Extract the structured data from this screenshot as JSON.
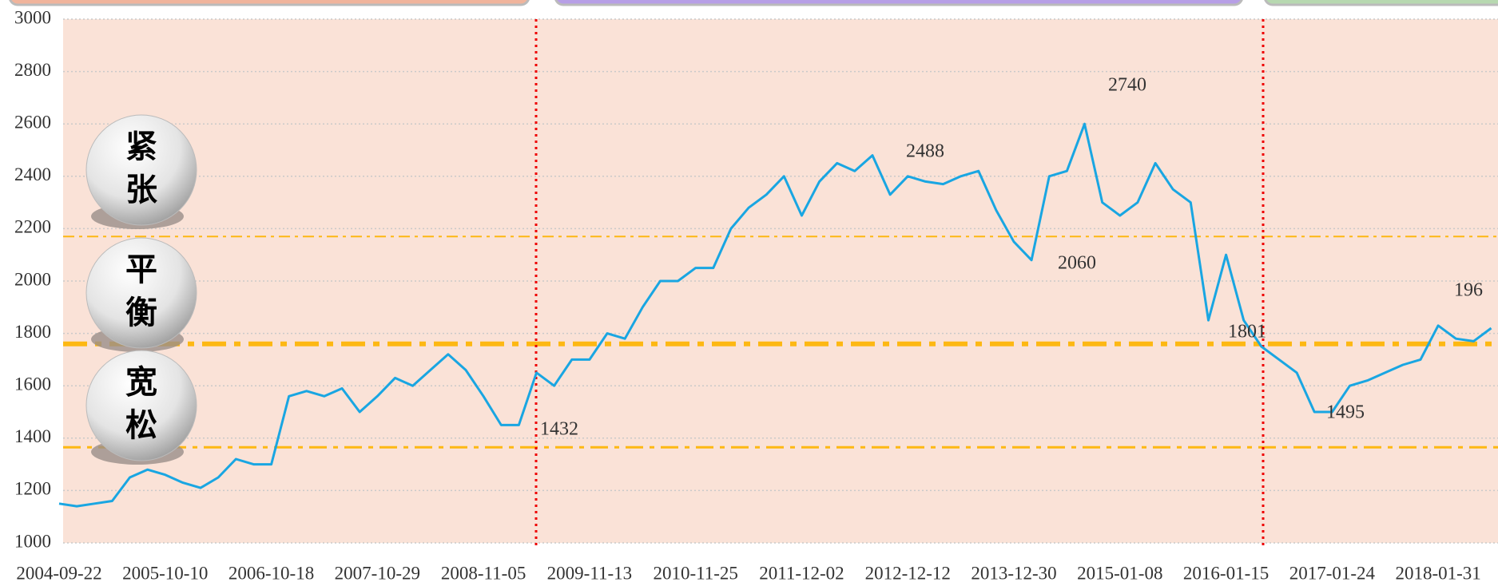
{
  "chart_data": {
    "type": "line",
    "categories": [
      "2004-09-22",
      null,
      null,
      null,
      null,
      null,
      "2005-10-10",
      null,
      null,
      null,
      null,
      null,
      "2006-10-18",
      null,
      null,
      null,
      null,
      null,
      "2007-10-29",
      null,
      null,
      null,
      null,
      null,
      "2008-11-05",
      null,
      null,
      null,
      null,
      null,
      "2009-11-13",
      null,
      null,
      null,
      null,
      null,
      "2010-11-25",
      null,
      null,
      null,
      null,
      null,
      "2011-12-02",
      null,
      null,
      null,
      null,
      null,
      "2012-12-12",
      null,
      null,
      null,
      null,
      null,
      "2013-12-30",
      null,
      null,
      null,
      null,
      null,
      "2015-01-08",
      null,
      null,
      null,
      null,
      null,
      "2016-01-15",
      null,
      null,
      null,
      null,
      null,
      "2017-01-24",
      null,
      null,
      null,
      null,
      null,
      "2018-01-31",
      null,
      null,
      null
    ],
    "values": [
      1150,
      1140,
      1150,
      1160,
      1250,
      1280,
      1260,
      1230,
      1210,
      1250,
      1320,
      1300,
      1300,
      1560,
      1580,
      1560,
      1590,
      1500,
      1560,
      1630,
      1600,
      1660,
      1720,
      1660,
      1560,
      1450,
      1450,
      1650,
      1600,
      1700,
      1700,
      1800,
      1780,
      1900,
      2000,
      2000,
      2050,
      2050,
      2200,
      2280,
      2330,
      2400,
      2250,
      2380,
      2450,
      2420,
      2480,
      2330,
      2400,
      2380,
      2370,
      2400,
      2420,
      2270,
      2150,
      2080,
      2400,
      2420,
      2600,
      2300,
      2250,
      2300,
      2450,
      2350,
      2300,
      1850,
      2100,
      1850,
      1750,
      1700,
      1650,
      1500,
      1500,
      1600,
      1620,
      1650,
      1680,
      1700,
      1830,
      1780,
      1770,
      1820
    ],
    "color": "#19a6e2",
    "ylim": [
      1000,
      3000
    ],
    "yticks": [
      1000,
      1200,
      1400,
      1600,
      1800,
      2000,
      2200,
      2400,
      2600,
      2800,
      3000
    ],
    "grid": true,
    "reference_lines": [
      2170,
      1760,
      1365
    ],
    "annotations": [
      "2740",
      "2488",
      "2060",
      "1432",
      "1801",
      "1495",
      "196"
    ],
    "zones": [
      "紧张",
      "平衡",
      "宽松"
    ]
  }
}
